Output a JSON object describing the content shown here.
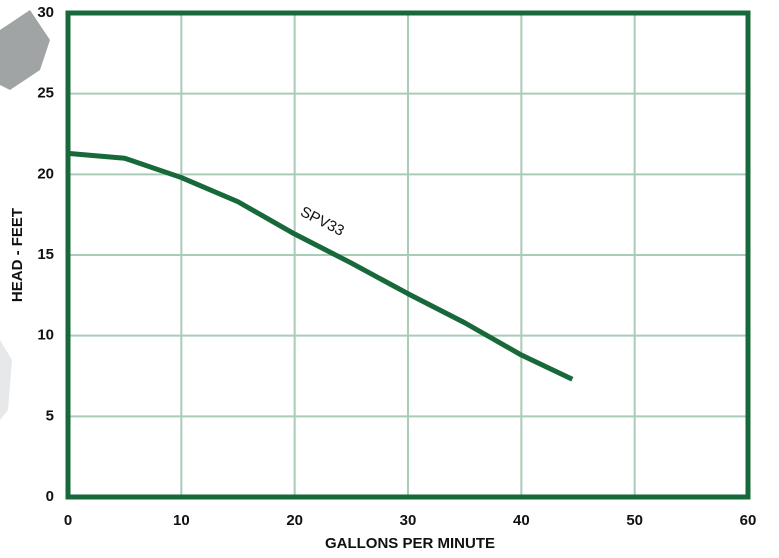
{
  "chart_data": {
    "type": "line",
    "x_label": "GALLONS PER MINUTE",
    "y_label": "HEAD - FEET",
    "annotation": "SPV33",
    "x": [
      0,
      5,
      10,
      15,
      20,
      25,
      30,
      35,
      40,
      44.5
    ],
    "series": [
      {
        "name": "SPV33",
        "color": "#17693a",
        "values": [
          21.3,
          21.0,
          19.8,
          18.3,
          16.3,
          14.5,
          12.6,
          10.8,
          8.8,
          7.3
        ]
      }
    ],
    "xlim": [
      0,
      60
    ],
    "xticks": [
      0,
      10,
      20,
      30,
      40,
      50,
      60
    ],
    "ylim": [
      0,
      30
    ],
    "yticks": [
      0,
      5,
      10,
      15,
      20,
      25,
      30
    ],
    "grid": true,
    "grid_color": "#a9ccb6",
    "frame_color": "#17693a"
  }
}
